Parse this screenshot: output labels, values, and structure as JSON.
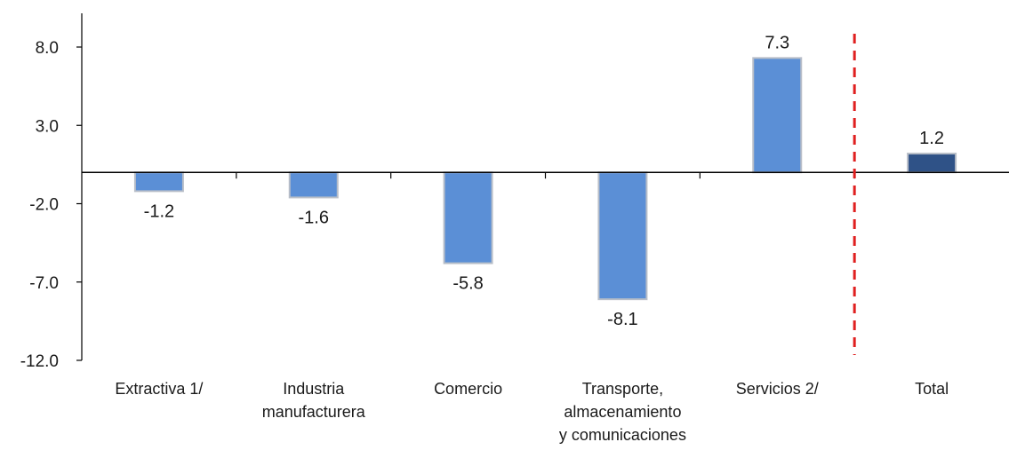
{
  "chart_data": {
    "type": "bar",
    "title": "",
    "xlabel": "",
    "ylabel": "",
    "ylim": [
      -12.0,
      10.0
    ],
    "yticks": [
      8.0,
      3.0,
      -2.0,
      -7.0,
      -12.0
    ],
    "ytick_labels": [
      "8.0",
      "3.0",
      "-2.0",
      "-7.0",
      "-12.0"
    ],
    "categories": [
      [
        "Extractiva 1/"
      ],
      [
        "Industria",
        "manufacturera"
      ],
      [
        "Comercio"
      ],
      [
        "Transporte,",
        "almacenamiento",
        "y comunicaciones"
      ],
      [
        "Servicios 2/"
      ],
      [
        "Total"
      ]
    ],
    "values": [
      -1.2,
      -1.6,
      -5.8,
      -8.1,
      7.3,
      1.2
    ],
    "value_labels": [
      "-1.2",
      "-1.6",
      "-5.8",
      "-8.1",
      "7.3",
      "1.2"
    ],
    "colors": {
      "bar": "#5b8fd6",
      "bar_stroke": "#b8bec8",
      "total_bar": "#2f5287",
      "separator": "#e02020",
      "axis": "#000000"
    },
    "grid": false,
    "separator_after_category": 4
  }
}
